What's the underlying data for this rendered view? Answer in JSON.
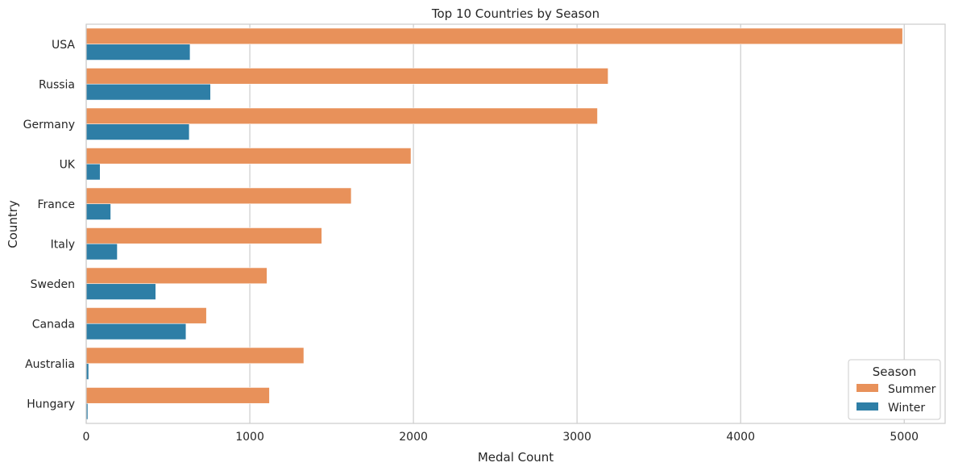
{
  "chart_data": {
    "type": "bar",
    "orientation": "horizontal",
    "title": "Top 10 Countries by Season",
    "xlabel": "Medal Count",
    "ylabel": "Country",
    "xlim": [
      0,
      5250
    ],
    "xticks": [
      0,
      1000,
      2000,
      3000,
      4000,
      5000
    ],
    "grid": "vertical",
    "categories": [
      "USA",
      "Russia",
      "Germany",
      "UK",
      "France",
      "Italy",
      "Sweden",
      "Canada",
      "Australia",
      "Hungary"
    ],
    "series": [
      {
        "name": "Summer",
        "color": "#e8915a",
        "values": [
          4990,
          3190,
          3125,
          1985,
          1620,
          1440,
          1105,
          735,
          1330,
          1120
        ]
      },
      {
        "name": "Winter",
        "color": "#2e7ea6",
        "values": [
          635,
          760,
          630,
          85,
          150,
          190,
          425,
          610,
          15,
          10
        ]
      }
    ],
    "legend": {
      "title": "Season",
      "position": "lower-right"
    }
  }
}
